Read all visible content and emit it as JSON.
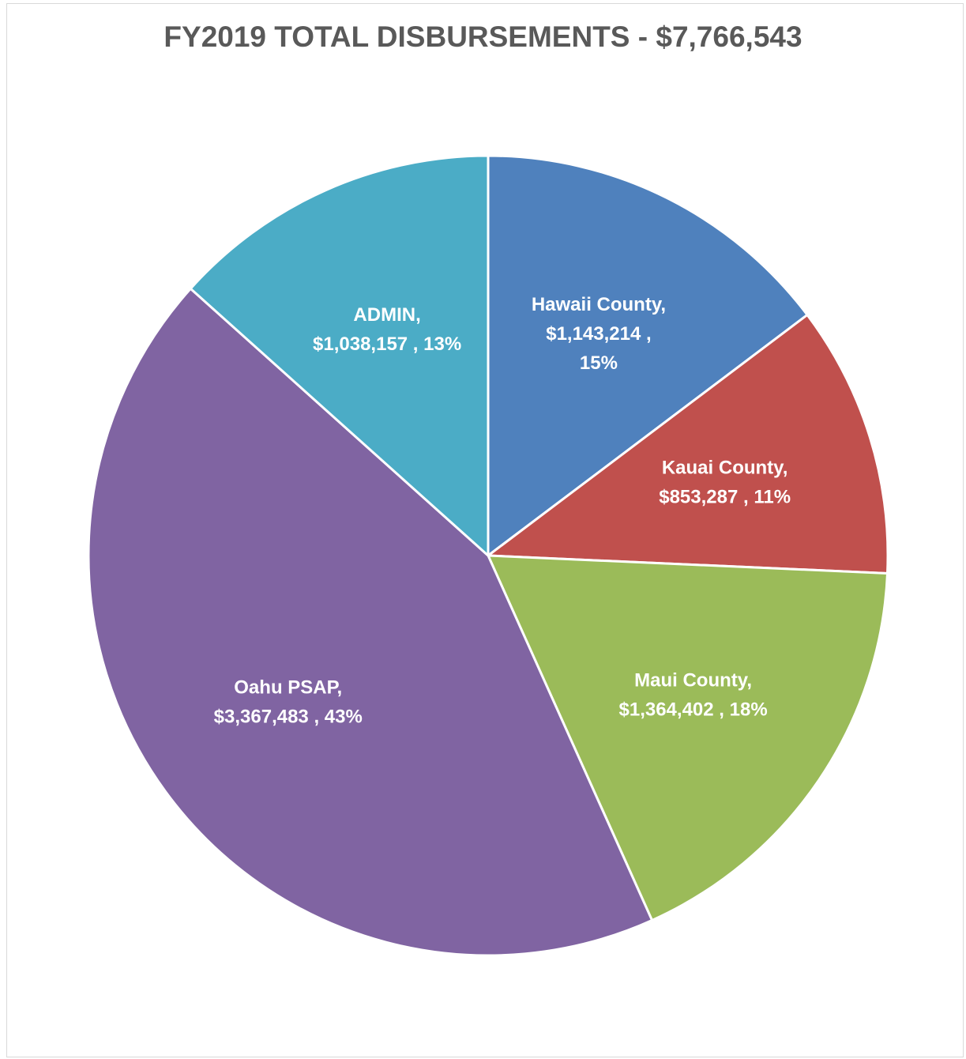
{
  "chart_data": {
    "type": "pie",
    "title": "FY2019 TOTAL DISBURSEMENTS - $7,766,543",
    "slices": [
      {
        "name": "Hawaii County",
        "value": 1143214,
        "percent": 15,
        "color": "#4F81BD",
        "label_lines": [
          "Hawaii County,",
          "$1,143,214 ,",
          "15%"
        ]
      },
      {
        "name": "Kauai County",
        "value": 853287,
        "percent": 11,
        "color": "#C0504D",
        "label_lines": [
          "Kauai County,",
          "$853,287 , 11%"
        ]
      },
      {
        "name": "Maui County",
        "value": 1364402,
        "percent": 18,
        "color": "#9BBB59",
        "label_lines": [
          "Maui County,",
          "$1,364,402 , 18%"
        ]
      },
      {
        "name": "Oahu PSAP",
        "value": 3367483,
        "percent": 43,
        "color": "#8064A2",
        "label_lines": [
          "Oahu PSAP,",
          "$3,367,483 , 43%"
        ]
      },
      {
        "name": "ADMIN",
        "value": 1038157,
        "percent": 13,
        "color": "#4BACC6",
        "label_lines": [
          "ADMIN,",
          "$1,038,157 , 13%"
        ]
      }
    ],
    "start_angle": "12 o'clock",
    "direction": "clockwise",
    "legend": "none",
    "data_labels": "inside"
  }
}
